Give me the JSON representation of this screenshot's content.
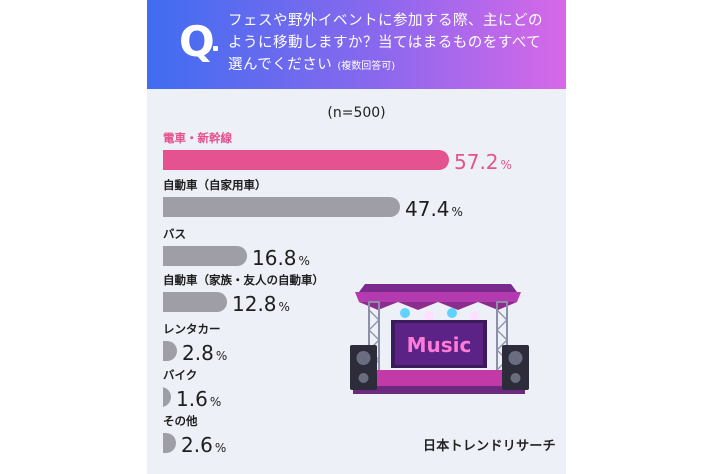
{
  "header": {
    "q_letter": "Q",
    "question": "フェスや野外イベントに参加する際、主にどのように移動しますか？当てはまるものをすべて選んでください",
    "question_note": "(複数回答可)",
    "gradient_colors": [
      "#3f6df0",
      "#8a68ee",
      "#d768e8"
    ]
  },
  "sample_size": "(n=500)",
  "logo": "日本トレンドリサーチ",
  "colors": {
    "highlight": "#e4538f",
    "bar": "#9e9ea6",
    "text": "#1e1e1e"
  },
  "illustration": {
    "icon": "festival-stage",
    "sign_text": "Music"
  },
  "chart_data": {
    "type": "bar",
    "orientation": "horizontal",
    "unit": "%",
    "categories": [
      "電車・新幹線",
      "自動車（自家用車）",
      "バス",
      "自動車（家族・友人の自動車）",
      "レンタカー",
      "バイク",
      "その他"
    ],
    "values": [
      57.2,
      47.4,
      16.8,
      12.8,
      2.8,
      1.6,
      2.6
    ],
    "value_labels": [
      "57.2",
      "47.4",
      "16.8",
      "12.8",
      "2.8",
      "1.6",
      "2.6"
    ],
    "highlight_index": 0,
    "xlim": [
      0,
      60
    ],
    "grid": false,
    "legend": "none"
  }
}
